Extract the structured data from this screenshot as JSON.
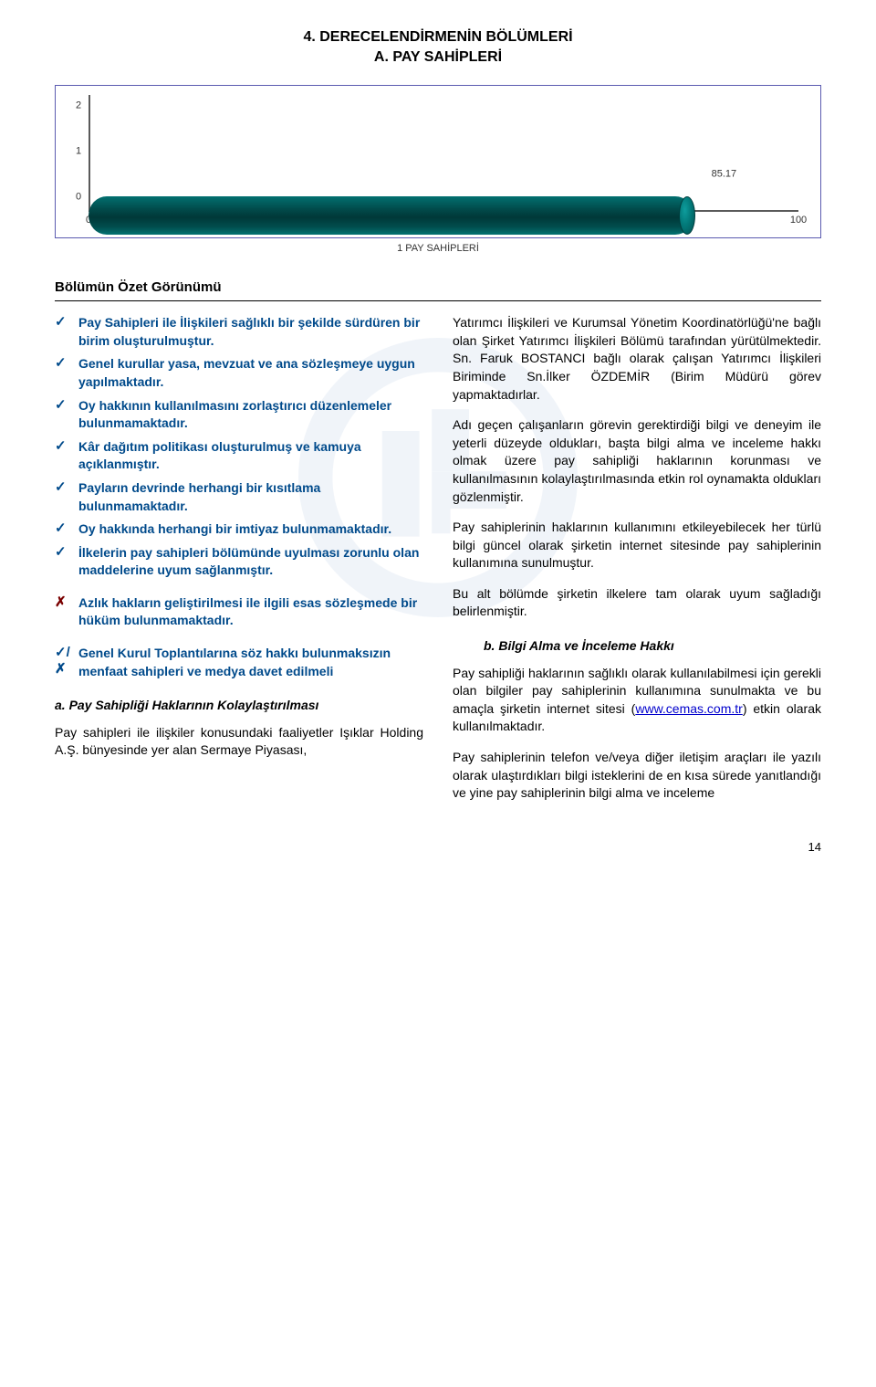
{
  "title": {
    "line1": "4.    DERECELENDİRMENİN BÖLÜMLERİ",
    "line2": "A. PAY SAHİPLERİ"
  },
  "chart": {
    "type": "horizontal-bar-3d",
    "xlim": [
      0,
      100
    ],
    "xticks": [
      0,
      25,
      50,
      75,
      100
    ],
    "yticks": [
      0,
      1,
      2
    ],
    "value": 85.17,
    "value_label": "85.17",
    "bar_color_top": "#027070",
    "bar_color_mid": "#003838",
    "bar_color_bottom": "#027272",
    "cap_color": "#0e9d9d",
    "axis_color": "#5a5a5a",
    "border_color": "#5b5bb0",
    "caption": "1 PAY SAHİPLERİ"
  },
  "section_title": "Bölümün Özet Görünümü",
  "bullets": {
    "pos": [
      "Pay Sahipleri ile İlişkileri sağlıklı bir şekilde sürdüren bir birim oluşturulmuştur.",
      "Genel kurullar yasa, mevzuat ve ana sözleşmeye uygun yapılmaktadır.",
      "Oy hakkının kullanılmasını zorlaştırıcı düzenlemeler bulunmamaktadır.",
      "Kâr dağıtım politikası oluşturulmuş ve kamuya açıklanmıştır.",
      "Payların devrinde herhangi bir kısıtlama bulunmamaktadır.",
      "Oy hakkında herhangi bir imtiyaz bulunmamaktadır.",
      "İlkelerin pay sahipleri bölümünde uyulması zorunlu olan maddelerine uyum sağlanmıştır."
    ],
    "neg": [
      "Azlık hakların geliştirilmesi ile ilgili esas sözleşmede bir hüküm bulunmamaktadır."
    ],
    "mix": [
      "Genel Kurul Toplantılarına söz hakkı bulunmaksızın menfaat sahipleri ve medya davet edilmeli"
    ]
  },
  "marks": {
    "tick": "✓",
    "cross": "✗",
    "mix": "✓/✗"
  },
  "subhead_a": "a. Pay Sahipliği Haklarının Kolaylaştırılması",
  "left_p1": "Pay sahipleri ile ilişkiler konusundaki faaliyetler Işıklar Holding A.Ş. bünyesinde yer alan Sermaye Piyasası,",
  "right_p1": "Yatırımcı İlişkileri ve Kurumsal Yönetim Koordinatörlüğü'ne bağlı olan Şirket Yatırımcı İlişkileri Bölümü tarafından yürütülmektedir. Sn. Faruk BOSTANCI bağlı olarak çalışan Yatırımcı İlişkileri Biriminde Sn.İlker ÖZDEMİR (Birim Müdürü görev yapmaktadırlar.",
  "right_p2": "Adı geçen çalışanların görevin gerektirdiği bilgi ve deneyim ile yeterli düzeyde oldukları, başta bilgi alma ve inceleme hakkı olmak üzere pay sahipliği haklarının korunması ve kullanılmasının kolaylaştırılmasında etkin rol oynamakta oldukları gözlenmiştir.",
  "right_p3": "Pay sahiplerinin haklarının kullanımını etkileyebilecek her türlü bilgi güncel olarak şirketin internet sitesinde pay sahiplerinin kullanımına sunulmuştur.",
  "right_p4": "Bu alt bölümde şirketin ilkelere tam olarak uyum sağladığı belirlenmiştir.",
  "subhead_b": "b.  Bilgi Alma ve İnceleme Hakkı",
  "right_p5_pre": "Pay sahipliği haklarının sağlıklı olarak kullanılabilmesi için gerekli olan bilgiler pay sahiplerinin kullanımına sunulmakta ve bu amaçla şirketin internet sitesi (",
  "right_p5_link": "www.cemas.com.tr",
  "right_p5_post": ") etkin olarak kullanılmaktadır.",
  "right_p6": "Pay sahiplerinin telefon ve/veya diğer iletişim araçları ile yazılı olarak ulaştırdıkları bilgi isteklerini de en kısa sürede yanıtlandığı ve yine pay sahiplerinin bilgi alma ve inceleme",
  "page_number": "14"
}
